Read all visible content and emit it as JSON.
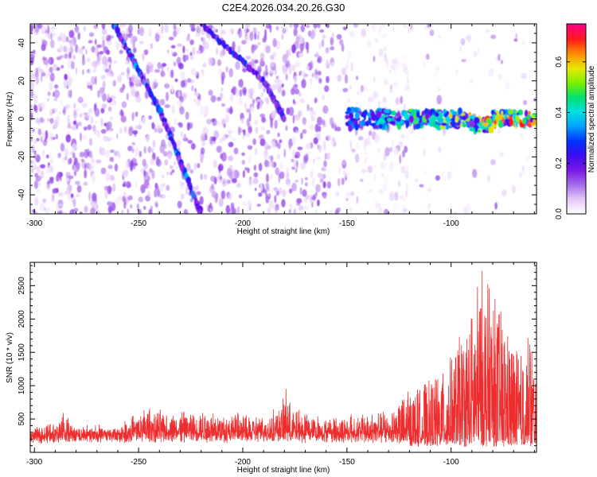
{
  "figure": {
    "title": "C2E4.2026.034.20.26.G30"
  },
  "chart_data": [
    {
      "type": "heatmap",
      "id": "spectrogram",
      "xlabel": "Height of straight line (km)",
      "ylabel": "Frequency (Hz)",
      "xlim": [
        -302,
        -59
      ],
      "ylim": [
        -50,
        50
      ],
      "xticks": [
        -300,
        -250,
        -200,
        -150,
        -100
      ],
      "yticks": [
        -40,
        -20,
        0,
        20,
        40
      ],
      "colorbar": {
        "label": "Normalized spectral amplitude",
        "range": [
          0.0,
          0.75
        ],
        "ticks": [
          0.0,
          0.2,
          0.4,
          0.6
        ],
        "colormap": [
          "#ffffff",
          "#e2c6f7",
          "#a66be8",
          "#7a16e6",
          "#3b0df0",
          "#0033ff",
          "#00a0ff",
          "#00e0e0",
          "#00e070",
          "#7cf000",
          "#e8e800",
          "#ff9000",
          "#ff1a1a",
          "#ff0080"
        ]
      },
      "features": [
        {
          "name": "Sweeping signal A",
          "path": [
            [
              -262,
              50
            ],
            [
              -240,
              5
            ],
            [
              -220,
              -50
            ]
          ]
        },
        {
          "name": "Sweeping signal B",
          "path": [
            [
              -220,
              50
            ],
            [
              -190,
              20
            ],
            [
              -180,
              0
            ]
          ]
        },
        {
          "name": "Narrow-band signal near 0 Hz",
          "x_range": [
            -150,
            -59
          ],
          "frequency": 0
        }
      ]
    },
    {
      "type": "line",
      "id": "snr",
      "xlabel": "Height of straight line (km)",
      "ylabel": "SNR (10 * v/v)",
      "xlim": [
        -302,
        -59
      ],
      "ylim": [
        0,
        2850
      ],
      "xticks": [
        -300,
        -250,
        -200,
        -150,
        -100
      ],
      "yticks": [
        500,
        1000,
        1500,
        2000,
        2500
      ],
      "series": [
        {
          "color": "#ee2e2e",
          "baseline": 250,
          "envelope": [
            [
              -302,
              300
            ],
            [
              -290,
              420
            ],
            [
              -287,
              650
            ],
            [
              -282,
              380
            ],
            [
              -260,
              360
            ],
            [
              -248,
              640
            ],
            [
              -235,
              600
            ],
            [
              -220,
              620
            ],
            [
              -200,
              560
            ],
            [
              -190,
              520
            ],
            [
              -181,
              700
            ],
            [
              -179,
              1120
            ],
            [
              -177,
              650
            ],
            [
              -160,
              520
            ],
            [
              -140,
              560
            ],
            [
              -128,
              650
            ],
            [
              -122,
              900
            ],
            [
              -115,
              1000
            ],
            [
              -105,
              1200
            ],
            [
              -98,
              1600
            ],
            [
              -94,
              1850
            ],
            [
              -90,
              2200
            ],
            [
              -85,
              2850
            ],
            [
              -80,
              2400
            ],
            [
              -75,
              2100
            ],
            [
              -70,
              1700
            ],
            [
              -65,
              1400
            ],
            [
              -62,
              1950
            ],
            [
              -59,
              1100
            ]
          ]
        }
      ]
    }
  ]
}
